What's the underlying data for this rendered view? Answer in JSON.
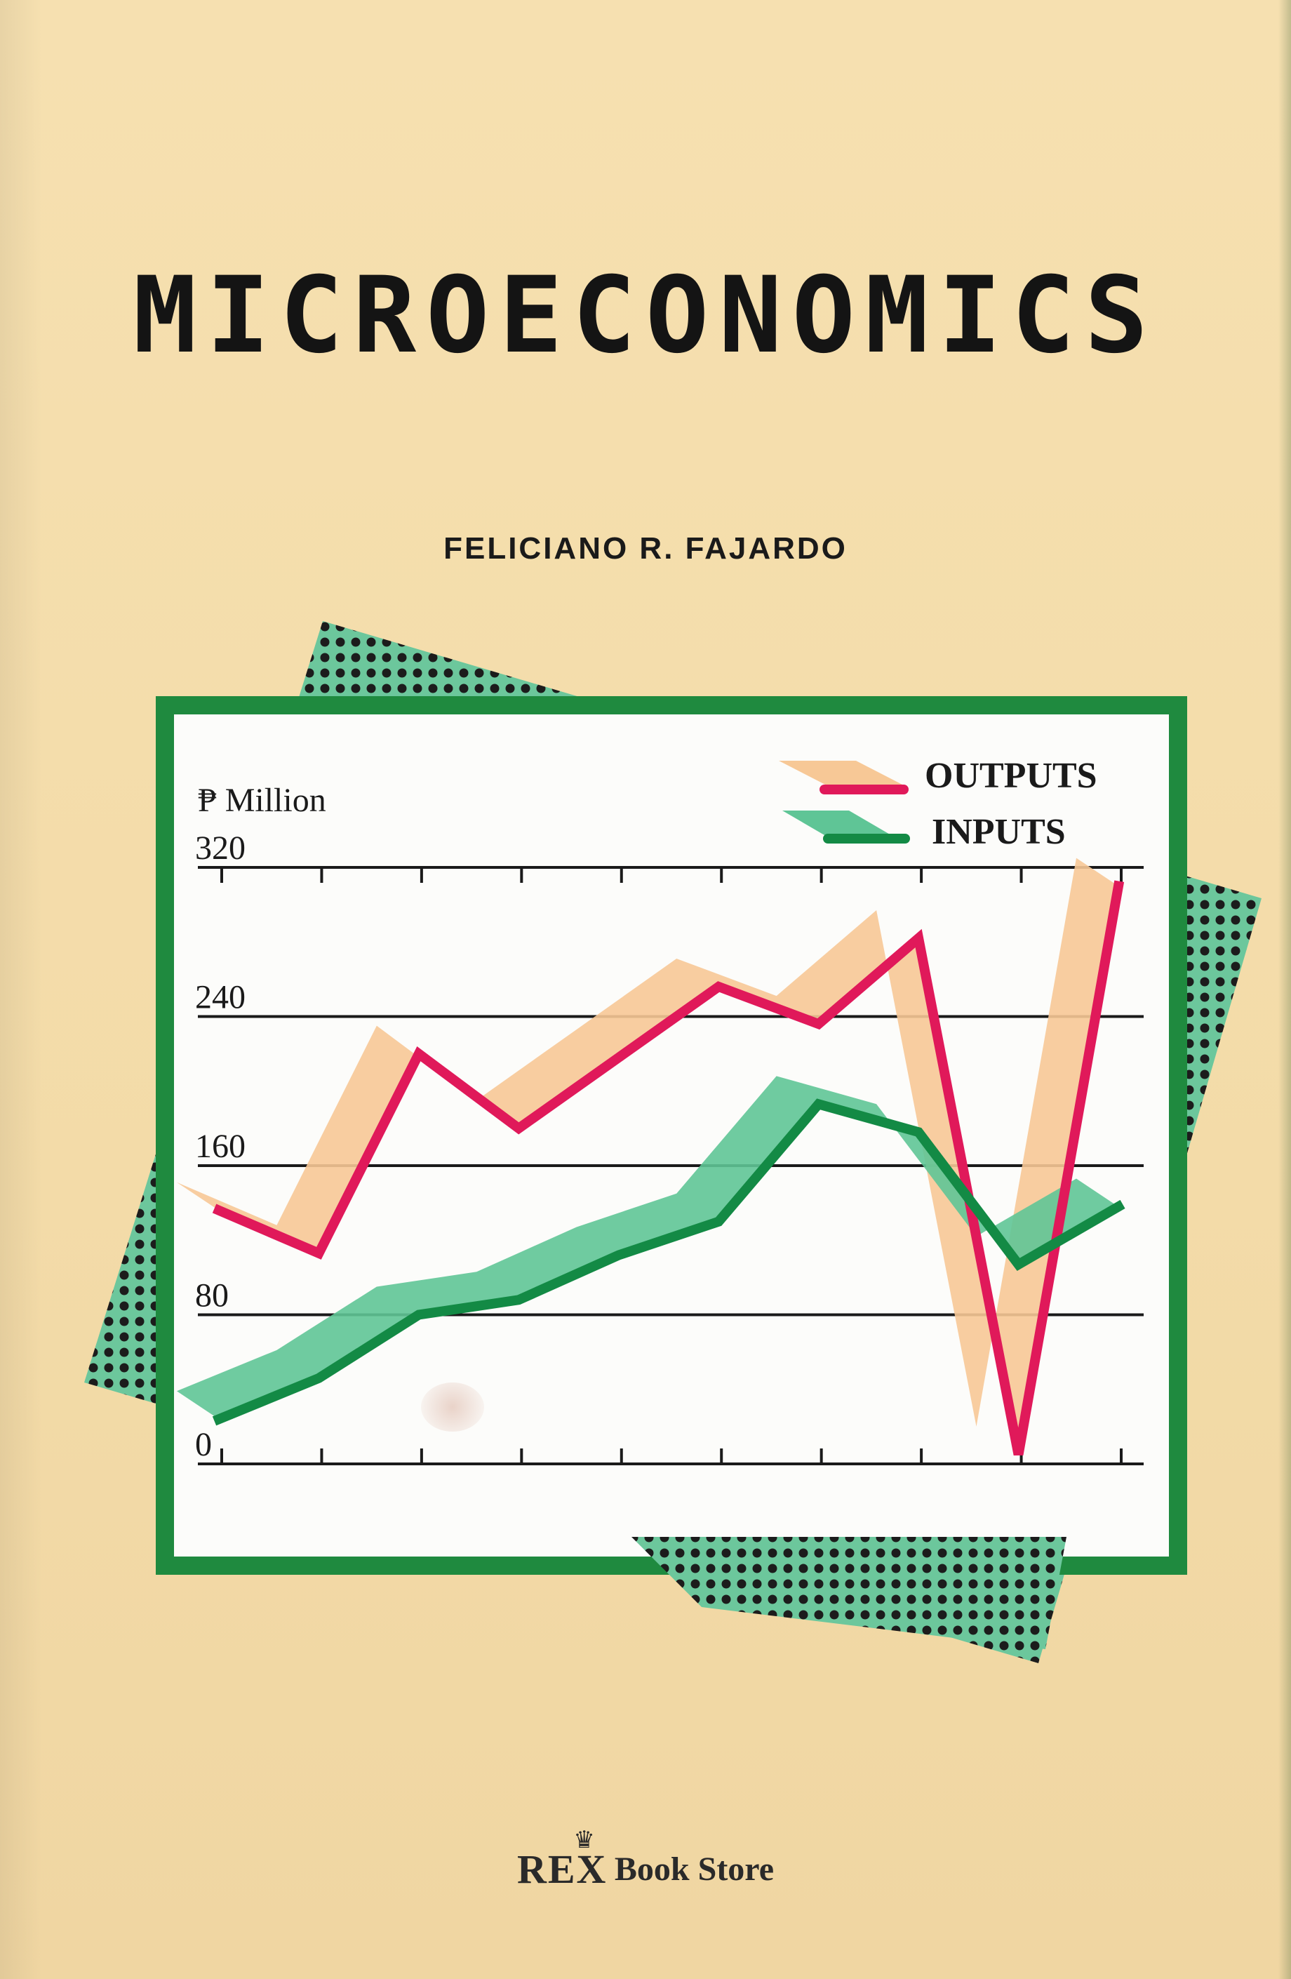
{
  "cover": {
    "title": "MICROECONOMICS",
    "author": "FELICIANO R. FAJARDO",
    "publisher": {
      "brand": "REX",
      "crown_icon": "crown-icon",
      "name": "Book Store"
    }
  },
  "colors": {
    "background": "#f5deae",
    "frame_green": "#1f8a3f",
    "outputs_line": "#e0195a",
    "outputs_band": "#f7c896",
    "inputs_line": "#138a45",
    "inputs_band": "#5fc596",
    "dots_panel": "#6cc79c"
  },
  "chart_data": {
    "type": "line",
    "ylabel": "₱ Million",
    "yticks": [
      "320",
      "240",
      "160",
      "80",
      "0"
    ],
    "ylim": [
      0,
      320
    ],
    "grid": true,
    "legend_position": "top-right",
    "x": [
      1,
      2,
      3,
      4,
      5,
      6,
      7,
      8,
      9,
      10
    ],
    "series": [
      {
        "name": "OUTPUTS",
        "values": [
          136,
          113,
          220,
          180,
          218,
          256,
          236,
          282,
          5,
          310
        ]
      },
      {
        "name": "INPUTS",
        "values": [
          24,
          46,
          80,
          88,
          112,
          130,
          193,
          178,
          107,
          138
        ]
      }
    ]
  }
}
